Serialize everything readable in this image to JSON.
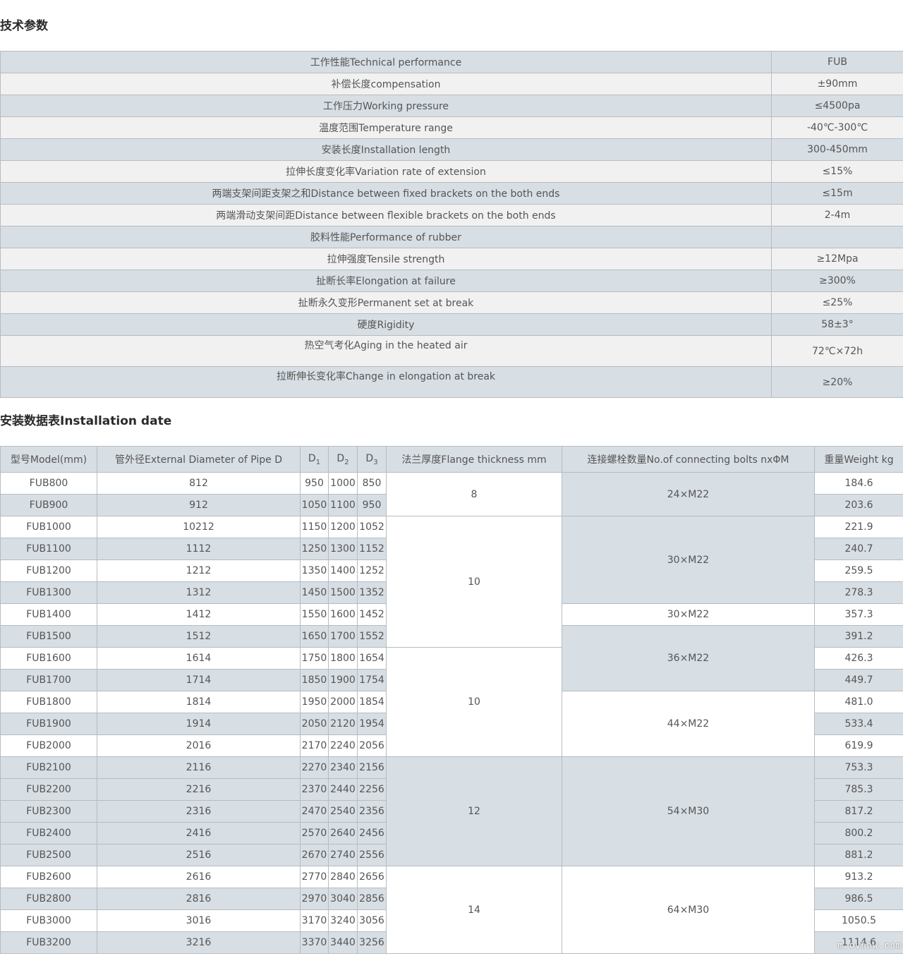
{
  "section1": {
    "title": "技术参数",
    "header": {
      "name": "工作性能Technical performance",
      "value": "FUB"
    },
    "rows": [
      {
        "name": "补偿长度compensation",
        "value": "±90mm"
      },
      {
        "name": "工作压力Working pressure",
        "value": "≤4500pa"
      },
      {
        "name": "温度范围Temperature range",
        "value": "-40℃-300℃"
      },
      {
        "name": "安装长度Installation length",
        "value": "300-450mm"
      },
      {
        "name": "拉伸长度变化率Variation rate of extension",
        "value": "≤15%"
      },
      {
        "name": "两端支架间距支架之和Distance between fixed brackets on the both ends",
        "value": "≤15m"
      },
      {
        "name": "两端滑动支架间距Distance between flexible brackets on the both ends",
        "value": "2-4m"
      },
      {
        "name": "胶料性能Performance of rubber",
        "value": ""
      },
      {
        "name": "拉伸强度Tensile strength",
        "value": "≥12Mpa"
      },
      {
        "name": "扯断长率Elongation at failure",
        "value": "≥300%"
      },
      {
        "name": "扯断永久变形Permanent set at break",
        "value": "≤25%"
      },
      {
        "name": "硬度Rigidity",
        "value": "58±3°"
      },
      {
        "name": "热空气考化Aging in the heated air",
        "value": "72℃×72h"
      },
      {
        "name": "拉断伸长变化率Change in elongation at break",
        "value": "≥20%"
      }
    ]
  },
  "section2": {
    "title": "安装数据表Installation date",
    "headers": {
      "model": "型号Model(mm)",
      "pipe": "管外径External Diameter of Pipe D",
      "d1": "D1",
      "d2": "D2",
      "d3": "D3",
      "flange": "法兰厚度Flange thickness mm",
      "bolts": "连接螺栓数量No.of connecting bolts nxΦM",
      "weight": "重量Weight kg"
    },
    "rows": [
      {
        "model": "FUB800",
        "pipe": "812",
        "d1": "950",
        "d2": "1000",
        "d3": "850",
        "weight": "184.6"
      },
      {
        "model": "FUB900",
        "pipe": "912",
        "d1": "1050",
        "d2": "1100",
        "d3": "950",
        "weight": "203.6"
      },
      {
        "model": "FUB1000",
        "pipe": "10212",
        "d1": "1150",
        "d2": "1200",
        "d3": "1052",
        "weight": "221.9"
      },
      {
        "model": "FUB1100",
        "pipe": "1112",
        "d1": "1250",
        "d2": "1300",
        "d3": "1152",
        "weight": "240.7"
      },
      {
        "model": "FUB1200",
        "pipe": "1212",
        "d1": "1350",
        "d2": "1400",
        "d3": "1252",
        "weight": "259.5"
      },
      {
        "model": "FUB1300",
        "pipe": "1312",
        "d1": "1450",
        "d2": "1500",
        "d3": "1352",
        "weight": "278.3"
      },
      {
        "model": "FUB1400",
        "pipe": "1412",
        "d1": "1550",
        "d2": "1600",
        "d3": "1452",
        "weight": "357.3"
      },
      {
        "model": "FUB1500",
        "pipe": "1512",
        "d1": "1650",
        "d2": "1700",
        "d3": "1552",
        "weight": "391.2"
      },
      {
        "model": "FUB1600",
        "pipe": "1614",
        "d1": "1750",
        "d2": "1800",
        "d3": "1654",
        "weight": "426.3"
      },
      {
        "model": "FUB1700",
        "pipe": "1714",
        "d1": "1850",
        "d2": "1900",
        "d3": "1754",
        "weight": "449.7"
      },
      {
        "model": "FUB1800",
        "pipe": "1814",
        "d1": "1950",
        "d2": "2000",
        "d3": "1854",
        "weight": "481.0"
      },
      {
        "model": "FUB1900",
        "pipe": "1914",
        "d1": "2050",
        "d2": "2120",
        "d3": "1954",
        "weight": "533.4"
      },
      {
        "model": "FUB2000",
        "pipe": "2016",
        "d1": "2170",
        "d2": "2240",
        "d3": "2056",
        "weight": "619.9"
      },
      {
        "model": "FUB2100",
        "pipe": "2116",
        "d1": "2270",
        "d2": "2340",
        "d3": "2156",
        "weight": "753.3"
      },
      {
        "model": "FUB2200",
        "pipe": "2216",
        "d1": "2370",
        "d2": "2440",
        "d3": "2256",
        "weight": "785.3"
      },
      {
        "model": "FUB2300",
        "pipe": "2316",
        "d1": "2470",
        "d2": "2540",
        "d3": "2356",
        "weight": "817.2"
      },
      {
        "model": "FUB2400",
        "pipe": "2416",
        "d1": "2570",
        "d2": "2640",
        "d3": "2456",
        "weight": "800.2"
      },
      {
        "model": "FUB2500",
        "pipe": "2516",
        "d1": "2670",
        "d2": "2740",
        "d3": "2556",
        "weight": "881.2"
      },
      {
        "model": "FUB2600",
        "pipe": "2616",
        "d1": "2770",
        "d2": "2840",
        "d3": "2656",
        "weight": "913.2"
      },
      {
        "model": "FUB2800",
        "pipe": "2816",
        "d1": "2970",
        "d2": "3040",
        "d3": "2856",
        "weight": "986.5"
      },
      {
        "model": "FUB3000",
        "pipe": "3016",
        "d1": "3170",
        "d2": "3240",
        "d3": "3056",
        "weight": "1050.5"
      },
      {
        "model": "FUB3200",
        "pipe": "3216",
        "d1": "3370",
        "d2": "3440",
        "d3": "3256",
        "weight": "1114.6"
      }
    ],
    "flange_groups": [
      {
        "value": "8",
        "rows": 2
      },
      {
        "value": "10",
        "rows": 6
      },
      {
        "value": "10",
        "rows": 5
      },
      {
        "value": "12",
        "rows": 5
      },
      {
        "value": "14",
        "rows": 4
      }
    ],
    "bolt_groups": [
      {
        "value": "24×M22",
        "rows": 2
      },
      {
        "value": "30×M22",
        "rows": 4
      },
      {
        "value": "30×M22",
        "rows": 1
      },
      {
        "value": "36×M22",
        "rows": 3
      },
      {
        "value": "44×M22",
        "rows": 3
      },
      {
        "value": "54×M30",
        "rows": 5
      },
      {
        "value": "64×M30",
        "rows": 4
      }
    ]
  },
  "watermark": "m.ovhhw.com"
}
